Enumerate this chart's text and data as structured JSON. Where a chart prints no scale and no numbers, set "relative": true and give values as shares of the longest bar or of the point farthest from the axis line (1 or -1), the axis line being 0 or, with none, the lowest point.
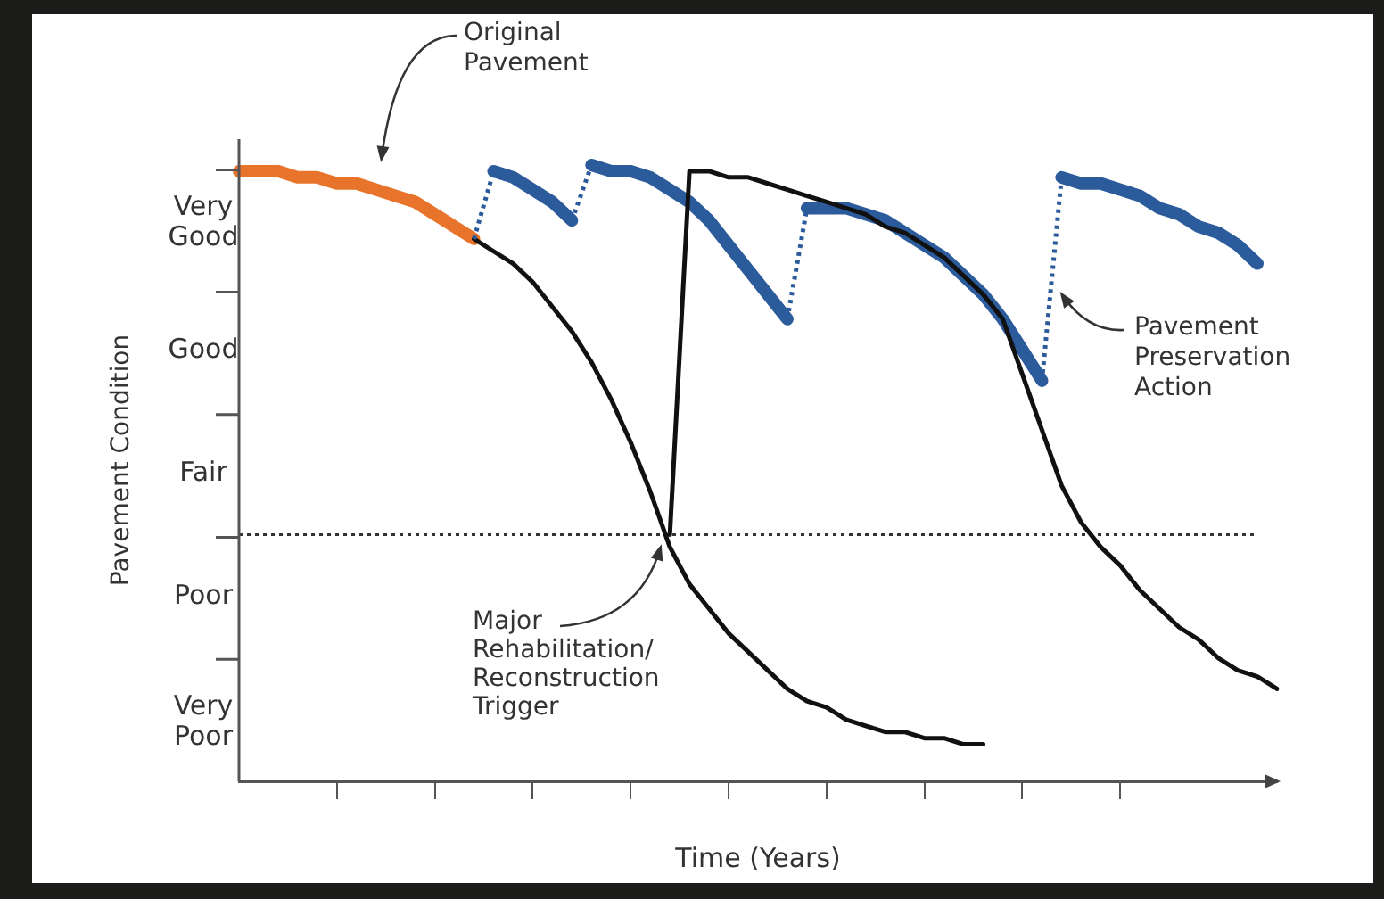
{
  "chart_data": {
    "type": "line",
    "relative": true,
    "xlabel": "Time (Years)",
    "ylabel": "Pavement Condition",
    "categories": [
      null,
      null,
      null,
      null,
      null,
      null,
      null,
      null,
      null,
      null,
      null,
      null,
      null,
      null,
      null,
      null,
      null,
      null,
      null,
      null,
      null,
      null,
      null,
      null,
      null,
      null,
      null,
      null,
      null,
      null,
      null,
      null,
      null,
      null,
      null,
      null,
      null,
      null,
      null,
      null,
      null,
      null,
      null,
      null,
      null,
      null,
      null,
      null,
      null,
      null,
      null,
      null,
      null,
      null
    ],
    "grid": false,
    "legend": false,
    "marker": "none",
    "series": [
      {
        "color": "#111111",
        "values": [
          null,
          null,
          null,
          null,
          null,
          null,
          null,
          null,
          null,
          null,
          null,
          null,
          0.88,
          0.86,
          0.84,
          0.81,
          0.77,
          0.73,
          0.68,
          0.62,
          0.55,
          0.47,
          0.38,
          0.32,
          0.28,
          0.24,
          0.21,
          0.18,
          0.15,
          0.13,
          0.12,
          0.1,
          0.09,
          0.08,
          0.08,
          0.07,
          0.07,
          0.06,
          0.06,
          null,
          null,
          null,
          null,
          null,
          null,
          null,
          null,
          null,
          null,
          null,
          null,
          null,
          null,
          null
        ]
      },
      {
        "color": "#111111",
        "values": [
          null,
          null,
          null,
          null,
          null,
          null,
          null,
          null,
          null,
          null,
          null,
          null,
          null,
          null,
          null,
          null,
          null,
          null,
          null,
          null,
          null,
          null,
          0.4,
          0.99,
          0.99,
          0.98,
          0.98,
          0.97,
          0.96,
          0.95,
          0.94,
          0.93,
          0.92,
          0.9,
          0.89,
          0.87,
          0.85,
          0.82,
          0.79,
          0.75,
          0.66,
          0.57,
          0.48,
          0.42,
          0.38,
          0.35,
          0.31,
          0.28,
          0.25,
          0.23,
          0.2,
          0.18,
          0.17,
          0.15
        ]
      },
      {
        "color": "#e8732a",
        "values": [
          0.99,
          0.99,
          0.99,
          0.98,
          0.98,
          0.97,
          0.97,
          0.96,
          0.95,
          0.94,
          0.92,
          0.9,
          0.88,
          null,
          null,
          null,
          null,
          null,
          null,
          null,
          null,
          null,
          null,
          null,
          null,
          null,
          null,
          null,
          null,
          null,
          null,
          null,
          null,
          null,
          null,
          null,
          null,
          null,
          null,
          null,
          null,
          null,
          null,
          null,
          null,
          null,
          null,
          null,
          null,
          null,
          null,
          null,
          null,
          null
        ]
      },
      {
        "color": "#2c5b9b",
        "values": [
          null,
          null,
          null,
          null,
          null,
          null,
          null,
          null,
          null,
          null,
          null,
          null,
          null,
          0.99,
          0.98,
          0.96,
          0.94,
          0.91,
          null,
          null,
          null,
          null,
          null,
          null,
          null,
          null,
          null,
          null,
          null,
          null,
          null,
          null,
          null,
          null,
          null,
          null,
          null,
          null,
          null,
          null,
          null,
          null,
          null,
          null,
          null,
          null,
          null,
          null,
          null,
          null,
          null,
          null,
          null,
          null
        ]
      },
      {
        "color": "#2c5b9b",
        "values": [
          null,
          null,
          null,
          null,
          null,
          null,
          null,
          null,
          null,
          null,
          null,
          null,
          null,
          null,
          null,
          null,
          null,
          null,
          1.0,
          0.99,
          0.99,
          0.98,
          0.96,
          0.94,
          0.91,
          0.87,
          0.83,
          0.79,
          0.75,
          null,
          null,
          null,
          null,
          null,
          null,
          null,
          null,
          null,
          null,
          null,
          null,
          null,
          null,
          null,
          null,
          null,
          null,
          null,
          null,
          null,
          null,
          null,
          null,
          null
        ]
      },
      {
        "color": "#2c5b9b",
        "values": [
          null,
          null,
          null,
          null,
          null,
          null,
          null,
          null,
          null,
          null,
          null,
          null,
          null,
          null,
          null,
          null,
          null,
          null,
          null,
          null,
          null,
          null,
          null,
          null,
          null,
          null,
          null,
          null,
          null,
          0.93,
          0.93,
          0.93,
          0.92,
          0.91,
          0.89,
          0.87,
          0.85,
          0.82,
          0.79,
          0.75,
          0.7,
          0.65,
          null,
          null,
          null,
          null,
          null,
          null,
          null,
          null,
          null,
          null,
          null,
          null
        ]
      },
      {
        "color": "#2c5b9b",
        "values": [
          null,
          null,
          null,
          null,
          null,
          null,
          null,
          null,
          null,
          null,
          null,
          null,
          null,
          null,
          null,
          null,
          null,
          null,
          null,
          null,
          null,
          null,
          null,
          null,
          null,
          null,
          null,
          null,
          null,
          null,
          null,
          null,
          null,
          null,
          null,
          null,
          null,
          null,
          null,
          null,
          null,
          null,
          0.98,
          0.97,
          0.97,
          0.96,
          0.95,
          0.93,
          0.92,
          0.9,
          0.89,
          0.87,
          0.84,
          null
        ]
      },
      {
        "color": "#2c5b9b",
        "line_style": "dotted",
        "values": [
          null,
          null,
          null,
          null,
          null,
          null,
          null,
          null,
          null,
          null,
          null,
          null,
          0.88,
          0.99,
          null,
          null,
          null,
          null,
          null,
          null,
          null,
          null,
          null,
          null,
          null,
          null,
          null,
          null,
          null,
          null,
          null,
          null,
          null,
          null,
          null,
          null,
          null,
          null,
          null,
          null,
          null,
          null,
          null,
          null,
          null,
          null,
          null,
          null,
          null,
          null,
          null,
          null,
          null,
          null
        ]
      },
      {
        "color": "#2c5b9b",
        "line_style": "dotted",
        "values": [
          null,
          null,
          null,
          null,
          null,
          null,
          null,
          null,
          null,
          null,
          null,
          null,
          null,
          null,
          null,
          null,
          null,
          0.91,
          1.0,
          null,
          null,
          null,
          null,
          null,
          null,
          null,
          null,
          null,
          null,
          null,
          null,
          null,
          null,
          null,
          null,
          null,
          null,
          null,
          null,
          null,
          null,
          null,
          null,
          null,
          null,
          null,
          null,
          null,
          null,
          null,
          null,
          null,
          null,
          null
        ]
      },
      {
        "color": "#2c5b9b",
        "line_style": "dotted",
        "values": [
          null,
          null,
          null,
          null,
          null,
          null,
          null,
          null,
          null,
          null,
          null,
          null,
          null,
          null,
          null,
          null,
          null,
          null,
          null,
          null,
          null,
          null,
          null,
          null,
          null,
          null,
          null,
          null,
          0.75,
          0.93,
          null,
          null,
          null,
          null,
          null,
          null,
          null,
          null,
          null,
          null,
          null,
          null,
          null,
          null,
          null,
          null,
          null,
          null,
          null,
          null,
          null,
          null,
          null,
          null
        ]
      },
      {
        "color": "#2c5b9b",
        "line_style": "dotted",
        "values": [
          null,
          null,
          null,
          null,
          null,
          null,
          null,
          null,
          null,
          null,
          null,
          null,
          null,
          null,
          null,
          null,
          null,
          null,
          null,
          null,
          null,
          null,
          null,
          null,
          null,
          null,
          null,
          null,
          null,
          null,
          null,
          null,
          null,
          null,
          null,
          null,
          null,
          null,
          null,
          null,
          null,
          0.65,
          0.98,
          null,
          null,
          null,
          null,
          null,
          null,
          null,
          null,
          null,
          null,
          null
        ]
      }
    ],
    "ref_lines": [
      {
        "axis": "y",
        "value": 0.4,
        "label": "Major Rehabilitation/ Reconstruction Trigger",
        "color": "#333333",
        "line_style": "dotted"
      }
    ],
    "annotations": [
      "Very Good",
      "Good",
      "Fair",
      "Poor",
      "Very Poor",
      "Original Pavement",
      "Pavement Preservation Action"
    ]
  }
}
